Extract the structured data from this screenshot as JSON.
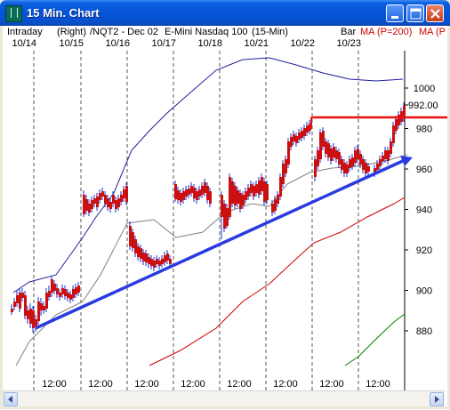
{
  "window": {
    "title": "15 Min. Chart"
  },
  "header": {
    "intraday": "Intraday",
    "right": "(Right)",
    "symbol": "/NQT2 - Dec 02",
    "instrument": "E-Mini Nasdaq 100",
    "interval": "(15-Min)",
    "bar": "Bar",
    "ma1": "MA (P=200)",
    "ma2": "MA (P"
  },
  "colors": {
    "price_up": "#1a2fd0",
    "price_down": "#cc1010",
    "trendline": "#2a3be0",
    "resistance": "#ee1010",
    "ma_upper": "#2020a0",
    "ma_mid": "#808080",
    "ma_200": "#cc0000",
    "ma_green": "#008000"
  },
  "chart_data": {
    "type": "candlestick",
    "day_labels": [
      "10/14",
      "10/15",
      "10/16",
      "10/17",
      "10/18",
      "10/21",
      "10/22",
      "10/23"
    ],
    "time_labels": [
      "12:00",
      "12:00",
      "12:00",
      "12:00",
      "12:00",
      "12:00",
      "12:00",
      "12:00"
    ],
    "y_ticks": [
      "1000",
      "980",
      "960",
      "940",
      "920",
      "900",
      "880"
    ],
    "ylim": [
      862,
      1012
    ],
    "last_price_label": "992.00",
    "resistance_level": 988,
    "trendline": {
      "start": {
        "day": "10/14",
        "price": 882
      },
      "end": {
        "day": "10/23",
        "price": 962
      }
    }
  },
  "scrollbar": {
    "left": "◀",
    "right": "▶"
  }
}
